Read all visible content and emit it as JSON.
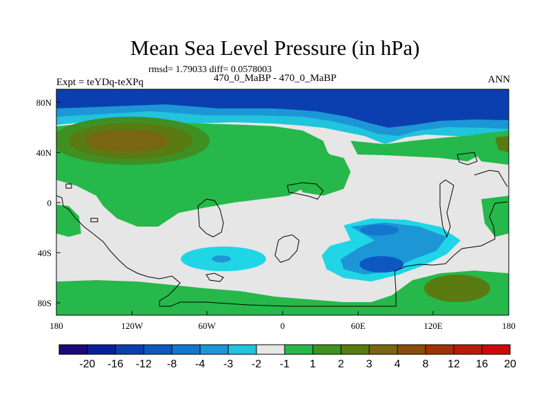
{
  "header": {
    "title": "Mean Sea Level Pressure (in hPa)",
    "stats": "rmsd= 1.79033 diff= 0.0578003",
    "left_label": "Expt = teYDq-teXPq",
    "center_label": "470_0_MaBP - 470_0_MaBP",
    "right_label": "ANN"
  },
  "axes": {
    "x_ticks": [
      "180",
      "120W",
      "60W",
      "0",
      "60E",
      "120E",
      "180"
    ],
    "y_ticks": [
      "80N",
      "40N",
      "0",
      "40S",
      "80S"
    ]
  },
  "colorbar": {
    "colors": [
      "#1a0a7a",
      "#0a1f9e",
      "#0b3fb0",
      "#0c58c0",
      "#1476cc",
      "#1d96d6",
      "#20c4dc",
      "#e6e6e6",
      "#26b84a",
      "#3f8f23",
      "#5a7a12",
      "#7a6610",
      "#8a4c0a",
      "#a03208",
      "#b81b08",
      "#cc0a0a"
    ],
    "labels": [
      "-20",
      "-16",
      "-12",
      "-8",
      "-4",
      "-3",
      "-2",
      "-1",
      "1",
      "2",
      "3",
      "4",
      "8",
      "12",
      "16",
      "20"
    ]
  },
  "map_colors": {
    "background_band": "#e6e6e6",
    "deep_blue": "#0b3fb0",
    "mid_blue": "#1476cc",
    "light_blue": "#1d96d6",
    "cyan": "#20d6e6",
    "green": "#26b84a",
    "dark_green": "#3f8f23",
    "olive": "#5a7a12",
    "brown": "#7a6610"
  }
}
